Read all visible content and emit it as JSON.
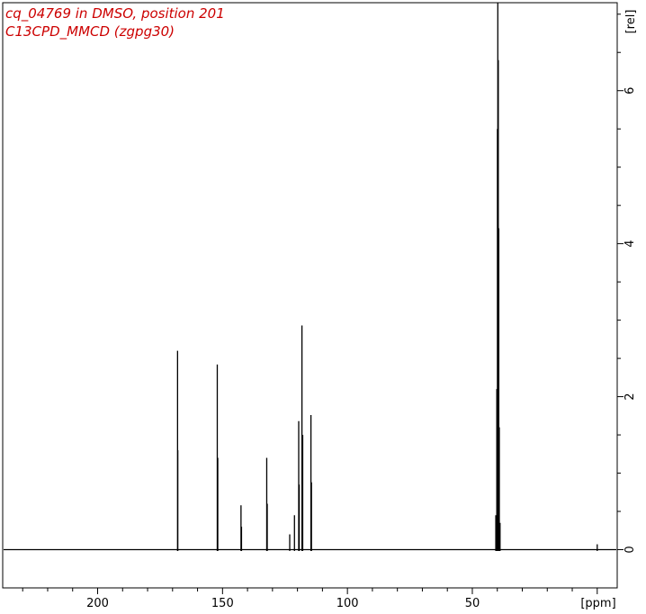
{
  "title_lines": [
    "cq_04769 in DMSO, position 201",
    "C13CPD_MMCD (zgpg30)"
  ],
  "colors": {
    "title": "#cc0000",
    "spectrum": "#000000",
    "axes": "#000000",
    "background": "#ffffff"
  },
  "chart_data": {
    "type": "line",
    "title": "cq_04769 in DMSO, position 201",
    "subtitle": "C13CPD_MMCD (zgpg30)",
    "xlabel": "[ppm]",
    "ylabel": "[rel]",
    "xlim": [
      238,
      -8
    ],
    "ylim": [
      -0.5,
      7.15
    ],
    "x_reversed": true,
    "x_major_ticks": [
      200,
      150,
      100,
      50
    ],
    "x_minor_step": 10,
    "y_major_ticks": [
      0,
      2,
      4,
      6
    ],
    "y_minor_step": 0.5,
    "grid": false,
    "legend": "none",
    "series": [
      {
        "values": [
          {
            "x": 168.0,
            "y": 2.6
          },
          {
            "x": 167.9,
            "y": 1.3
          },
          {
            "x": 152.1,
            "y": 2.42
          },
          {
            "x": 151.9,
            "y": 1.2
          },
          {
            "x": 142.6,
            "y": 0.58
          },
          {
            "x": 142.4,
            "y": 0.3
          },
          {
            "x": 132.3,
            "y": 1.2
          },
          {
            "x": 132.1,
            "y": 0.6
          },
          {
            "x": 123.1,
            "y": 0.2
          },
          {
            "x": 121.2,
            "y": 0.45
          },
          {
            "x": 119.5,
            "y": 1.68
          },
          {
            "x": 119.3,
            "y": 0.85
          },
          {
            "x": 118.2,
            "y": 2.93
          },
          {
            "x": 117.9,
            "y": 1.5
          },
          {
            "x": 114.6,
            "y": 1.76
          },
          {
            "x": 114.4,
            "y": 0.88
          },
          {
            "x": 40.6,
            "y": 0.45
          },
          {
            "x": 40.2,
            "y": 2.1
          },
          {
            "x": 39.95,
            "y": 5.5
          },
          {
            "x": 39.8,
            "y": 7.15
          },
          {
            "x": 39.6,
            "y": 6.4
          },
          {
            "x": 39.4,
            "y": 4.2
          },
          {
            "x": 39.2,
            "y": 1.6
          },
          {
            "x": 38.9,
            "y": 0.35
          },
          {
            "x": 0.0,
            "y": 0.07
          }
        ]
      }
    ]
  }
}
